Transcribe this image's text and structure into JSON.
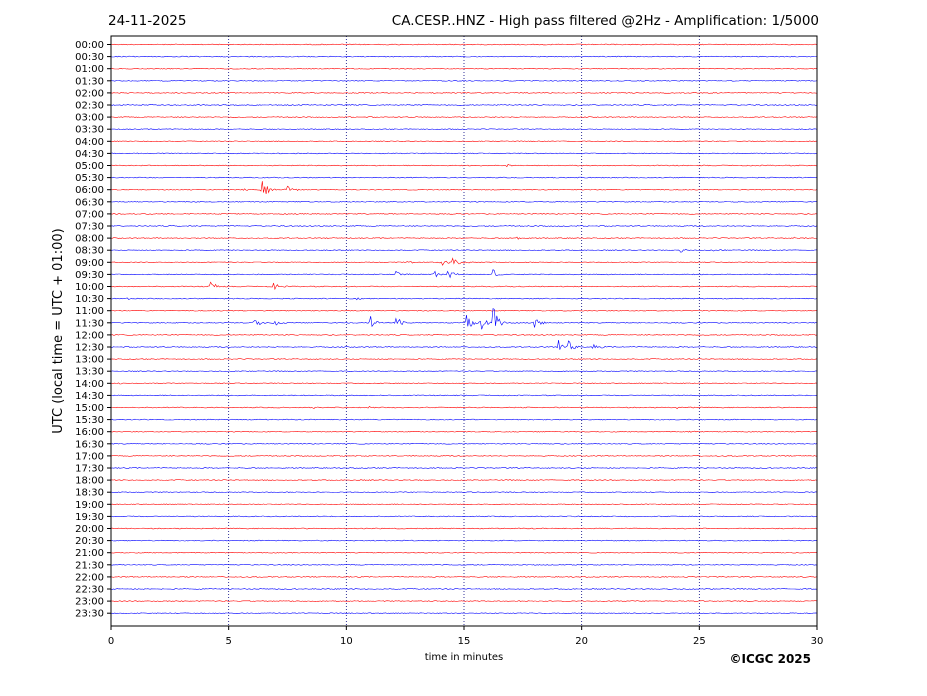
{
  "header": {
    "date": "24-11-2025",
    "title": "CA.CESP..HNZ - High pass filtered @2Hz - Amplification: 1/5000"
  },
  "footer": {
    "copyright": "©ICGC 2025"
  },
  "chart_data": {
    "type": "line",
    "xlabel": "time in minutes",
    "ylabel": "UTC (local time = UTC + 01:00)",
    "xlim": [
      0,
      30
    ],
    "x_ticks": [
      0,
      5,
      10,
      15,
      20,
      25,
      30
    ],
    "grid": "vertical dotted lines at 5-minute intervals",
    "row_labels": [
      "00:00",
      "00:30",
      "01:00",
      "01:30",
      "02:00",
      "02:30",
      "03:00",
      "03:30",
      "04:00",
      "04:30",
      "05:00",
      "05:30",
      "06:00",
      "06:30",
      "07:00",
      "07:30",
      "08:00",
      "08:30",
      "09:00",
      "09:30",
      "10:00",
      "10:30",
      "11:00",
      "11:30",
      "12:00",
      "12:30",
      "13:00",
      "13:30",
      "14:00",
      "14:30",
      "15:00",
      "15:30",
      "16:00",
      "16:30",
      "17:00",
      "17:30",
      "18:00",
      "18:30",
      "19:00",
      "19:30",
      "20:00",
      "20:30",
      "21:00",
      "21:30",
      "22:00",
      "22:30",
      "23:00",
      "23:30"
    ],
    "trace_colors": [
      "#ff0000",
      "#0000ff"
    ],
    "events": [
      {
        "row": "05:00",
        "minute": 16.8,
        "amplitude": 0.25
      },
      {
        "row": "06:00",
        "minute": 5.6,
        "amplitude": 0.2
      },
      {
        "row": "06:00",
        "minute": 6.4,
        "amplitude": 1.6
      },
      {
        "row": "06:00",
        "minute": 7.4,
        "amplitude": 0.9
      },
      {
        "row": "08:00",
        "minute": 17.2,
        "amplitude": 0.25
      },
      {
        "row": "08:00",
        "minute": 29.0,
        "amplitude": 0.2
      },
      {
        "row": "08:30",
        "minute": 24.2,
        "amplitude": 0.35
      },
      {
        "row": "08:30",
        "minute": 25.6,
        "amplitude": 0.35
      },
      {
        "row": "09:00",
        "minute": 12.6,
        "amplitude": 0.25
      },
      {
        "row": "09:00",
        "minute": 14.0,
        "amplitude": 1.2
      },
      {
        "row": "09:00",
        "minute": 14.5,
        "amplitude": 1.5
      },
      {
        "row": "09:30",
        "minute": 12.1,
        "amplitude": 0.8
      },
      {
        "row": "09:30",
        "minute": 13.7,
        "amplitude": 0.6
      },
      {
        "row": "09:30",
        "minute": 14.3,
        "amplitude": 0.9
      },
      {
        "row": "09:30",
        "minute": 16.2,
        "amplitude": 0.9
      },
      {
        "row": "10:00",
        "minute": 4.2,
        "amplitude": 0.9
      },
      {
        "row": "10:00",
        "minute": 6.9,
        "amplitude": 0.6
      },
      {
        "row": "10:30",
        "minute": 0.6,
        "amplitude": 0.2
      },
      {
        "row": "10:30",
        "minute": 10.4,
        "amplitude": 0.25
      },
      {
        "row": "11:30",
        "minute": 6.1,
        "amplitude": 1.1
      },
      {
        "row": "11:30",
        "minute": 6.9,
        "amplitude": 0.6
      },
      {
        "row": "11:30",
        "minute": 11.0,
        "amplitude": 1.3
      },
      {
        "row": "11:30",
        "minute": 12.1,
        "amplitude": 1.4
      },
      {
        "row": "11:30",
        "minute": 15.1,
        "amplitude": 1.6
      },
      {
        "row": "11:30",
        "minute": 15.7,
        "amplitude": 1.4
      },
      {
        "row": "11:30",
        "minute": 16.2,
        "amplitude": 3.2
      },
      {
        "row": "11:30",
        "minute": 17.9,
        "amplitude": 1.5
      },
      {
        "row": "12:30",
        "minute": 19.0,
        "amplitude": 1.1
      },
      {
        "row": "12:30",
        "minute": 19.4,
        "amplitude": 1.2
      },
      {
        "row": "12:30",
        "minute": 20.5,
        "amplitude": 0.7
      },
      {
        "row": "14:00",
        "minute": 0.2,
        "amplitude": 0.2
      },
      {
        "row": "15:00",
        "minute": 8.6,
        "amplitude": 0.15
      },
      {
        "row": "15:00",
        "minute": 10.9,
        "amplitude": 0.2
      },
      {
        "row": "15:00",
        "minute": 24.0,
        "amplitude": 0.2
      },
      {
        "row": "16:00",
        "minute": 24.5,
        "amplitude": 0.15
      }
    ]
  }
}
